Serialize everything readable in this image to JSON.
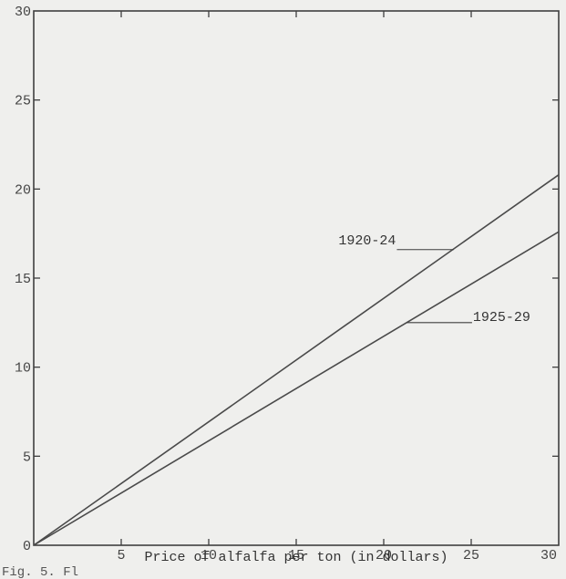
{
  "chart_data": {
    "type": "line",
    "title": "",
    "xlabel": "Price of alfalfa per ton (in dollars)",
    "ylabel": "",
    "xlim": [
      0,
      30
    ],
    "ylim": [
      0,
      30
    ],
    "x_ticks": [
      5,
      10,
      15,
      20,
      25,
      30
    ],
    "y_ticks": [
      0,
      5,
      10,
      15,
      20,
      25,
      30
    ],
    "grid": false,
    "series": [
      {
        "name": "1920-24",
        "x": [
          0,
          30
        ],
        "y": [
          0,
          20.8
        ]
      },
      {
        "name": "1925-29",
        "x": [
          0,
          30
        ],
        "y": [
          0,
          17.6
        ]
      }
    ],
    "annotations": [
      {
        "text": "1920-24",
        "series": "1920-24",
        "x_label": 20.7,
        "y_label": 16.9,
        "x_point": 24.0,
        "y_point": 16.6
      },
      {
        "text": "1925-29",
        "series": "1925-29",
        "x_label": 25.1,
        "y_label": 12.5,
        "x_point": 21.3,
        "y_point": 12.5
      }
    ],
    "caption": "Fig. 5. Fl"
  }
}
